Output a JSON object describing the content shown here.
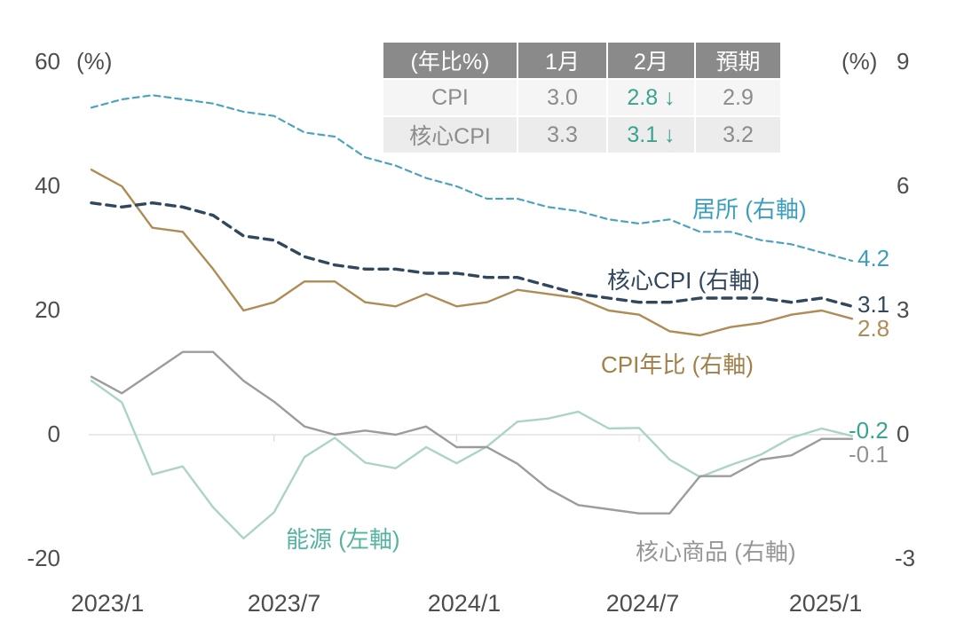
{
  "axes": {
    "left": {
      "unit": "(%)",
      "ticks": [
        "60",
        "40",
        "20",
        "0",
        "-20"
      ],
      "range": [
        -20,
        60
      ]
    },
    "right": {
      "unit": "(%)",
      "ticks": [
        "9",
        "6",
        "3",
        "0",
        "-3"
      ],
      "range": [
        -3,
        9
      ]
    },
    "x": {
      "labels": [
        "2023/1",
        "2023/7",
        "2024/1",
        "2024/7",
        "2025/1"
      ]
    }
  },
  "table": {
    "headers": [
      "(年比%)",
      "1月",
      "2月",
      "預期"
    ],
    "rows": [
      {
        "label": "CPI",
        "jan": "3.0",
        "feb": "2.8 ↓",
        "forecast": "2.9"
      },
      {
        "label": "核心CPI",
        "jan": "3.3",
        "feb": "3.1 ↓",
        "forecast": "3.2"
      }
    ],
    "header_bg": "#8a8a8a",
    "highlight_color": "#3aa390"
  },
  "end_labels": {
    "shelter": "4.2",
    "core_cpi": "3.1",
    "cpi": "2.8",
    "energy": "-0.2",
    "core_goods": "-0.1"
  },
  "chart_data": {
    "type": "line",
    "title": "",
    "x": [
      "2023/1",
      "2023/2",
      "2023/3",
      "2023/4",
      "2023/5",
      "2023/6",
      "2023/7",
      "2023/8",
      "2023/9",
      "2023/10",
      "2023/11",
      "2023/12",
      "2024/1",
      "2024/2",
      "2024/3",
      "2024/4",
      "2024/5",
      "2024/6",
      "2024/7",
      "2024/8",
      "2024/9",
      "2024/10",
      "2024/11",
      "2024/12",
      "2025/1",
      "2025/2"
    ],
    "axis_left_range": [
      -20,
      60
    ],
    "axis_right_range": [
      -3,
      9
    ],
    "grid": "zero-line-only",
    "legend": "inline-labels-near-lines",
    "series": [
      {
        "name": "能源 (左軸)",
        "id": "energy",
        "axis": "left",
        "color": "#acd4c6",
        "style": "solid",
        "values": [
          8.7,
          5.2,
          -6.4,
          -5.1,
          -11.7,
          -16.7,
          -12.5,
          -3.6,
          -0.5,
          -4.5,
          -5.4,
          -2.0,
          -4.6,
          -1.9,
          2.1,
          2.6,
          3.7,
          1.0,
          1.1,
          -4.0,
          -6.8,
          -4.9,
          -3.2,
          -0.5,
          1.0,
          -0.2
        ]
      },
      {
        "name": "核心商品 (右軸)",
        "id": "core_goods",
        "axis": "right",
        "color": "#9c9c9c",
        "style": "solid",
        "values": [
          1.4,
          1.0,
          1.5,
          2.0,
          2.0,
          1.3,
          0.8,
          0.2,
          0.0,
          0.1,
          0.0,
          0.2,
          -0.3,
          -0.3,
          -0.7,
          -1.3,
          -1.7,
          -1.8,
          -1.9,
          -1.9,
          -1.0,
          -1.0,
          -0.6,
          -0.5,
          -0.1,
          -0.1
        ]
      },
      {
        "name": "居所 (右軸)",
        "id": "shelter",
        "axis": "right",
        "color": "#4ba3be",
        "style": "dashed",
        "values": [
          7.9,
          8.1,
          8.2,
          8.1,
          8.0,
          7.8,
          7.7,
          7.3,
          7.2,
          6.7,
          6.5,
          6.2,
          6.0,
          5.7,
          5.7,
          5.5,
          5.4,
          5.2,
          5.1,
          5.2,
          4.9,
          4.9,
          4.7,
          4.6,
          4.4,
          4.2
        ]
      },
      {
        "name": "CPI年比 (右軸)",
        "id": "cpi",
        "axis": "right",
        "color": "#ae8c55",
        "style": "solid",
        "values": [
          6.4,
          6.0,
          5.0,
          4.9,
          4.0,
          3.0,
          3.2,
          3.7,
          3.7,
          3.2,
          3.1,
          3.4,
          3.1,
          3.2,
          3.5,
          3.4,
          3.3,
          3.0,
          2.9,
          2.5,
          2.4,
          2.6,
          2.7,
          2.9,
          3.0,
          2.8
        ]
      },
      {
        "name": "核心CPI (右軸)",
        "id": "core_cpi",
        "axis": "right",
        "color": "#31475c",
        "style": "dashed",
        "values": [
          5.6,
          5.5,
          5.6,
          5.5,
          5.3,
          4.8,
          4.7,
          4.3,
          4.1,
          4.0,
          4.0,
          3.9,
          3.9,
          3.8,
          3.8,
          3.6,
          3.4,
          3.3,
          3.2,
          3.2,
          3.3,
          3.3,
          3.3,
          3.2,
          3.3,
          3.1
        ]
      }
    ]
  }
}
